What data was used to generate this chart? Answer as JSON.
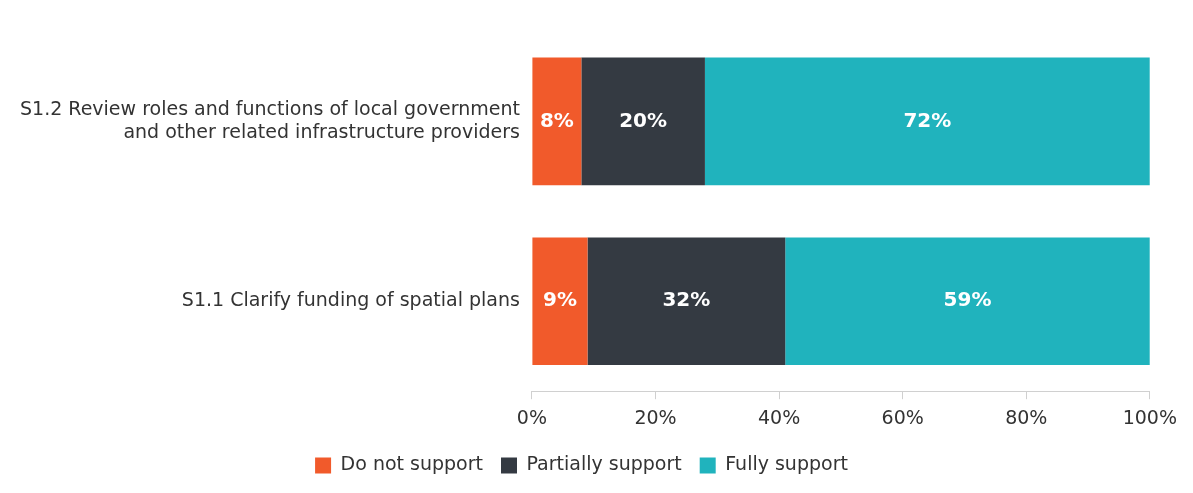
{
  "chart_data": {
    "type": "bar",
    "orientation": "horizontal",
    "stacked": true,
    "categories": [
      "S1.2 Review roles and functions of local government and other related infrastructure providers",
      "S1.1 Clarify funding of spatial plans"
    ],
    "series": [
      {
        "name": "Do not support",
        "color": "#f15a2b",
        "values": [
          8,
          9
        ],
        "value_labels": [
          "8%",
          "9%"
        ]
      },
      {
        "name": "Partially support",
        "color": "#343a42",
        "values": [
          20,
          32
        ],
        "value_labels": [
          "20%",
          "32%"
        ]
      },
      {
        "name": "Fully support",
        "color": "#20b3bd",
        "values": [
          72,
          59
        ],
        "value_labels": [
          "72%",
          "59%"
        ]
      }
    ],
    "xlim": [
      0,
      100
    ],
    "xticks": [
      {
        "value": 0,
        "label": "0%"
      },
      {
        "value": 20,
        "label": "20%"
      },
      {
        "value": 40,
        "label": "40%"
      },
      {
        "value": 60,
        "label": "60%"
      },
      {
        "value": 80,
        "label": "80%"
      },
      {
        "value": 100,
        "label": "100%"
      }
    ],
    "grid": false,
    "legend": "bottom"
  }
}
